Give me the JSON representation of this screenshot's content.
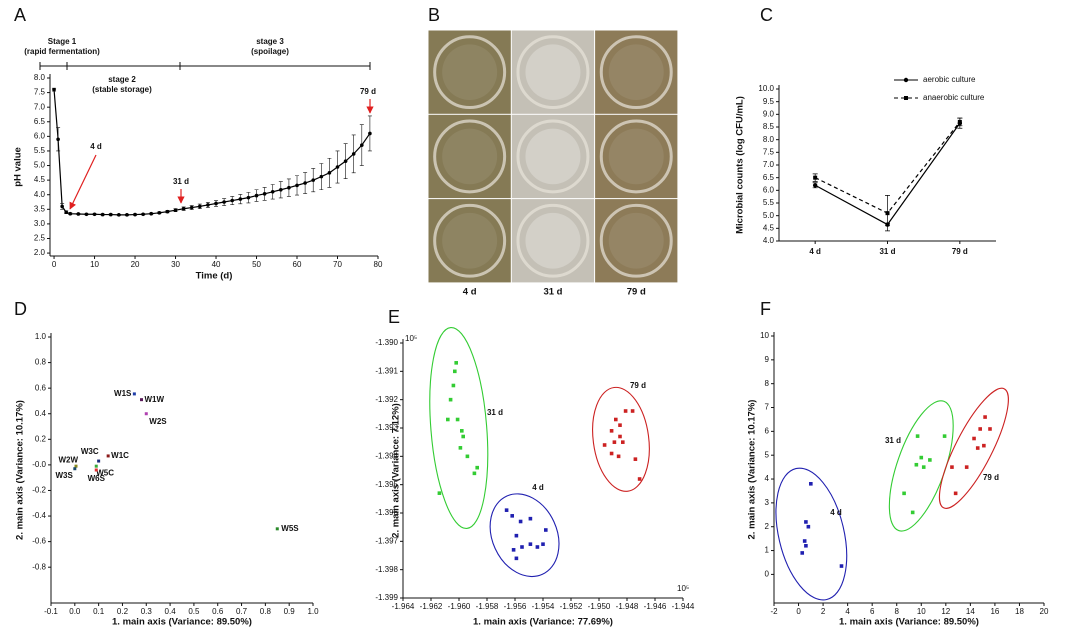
{
  "chart_data": [
    {
      "type": "line",
      "label": "A",
      "xlabel": "Time (d)",
      "ylabel": "pH value",
      "color": "#000000",
      "stages": [
        [
          "Stage 1",
          "(rapid fermentation)"
        ],
        [
          "stage 2",
          "(stable storage)"
        ],
        [
          "stage 3",
          "(spoilage)"
        ]
      ],
      "annotations": [
        "4 d",
        "31 d",
        "79 d"
      ],
      "annotation_color": "#e02020",
      "x": [
        0,
        1,
        2,
        3,
        4,
        6,
        8,
        10,
        12,
        14,
        16,
        18,
        20,
        22,
        24,
        26,
        28,
        30,
        32,
        34,
        36,
        38,
        40,
        42,
        44,
        46,
        48,
        50,
        52,
        54,
        56,
        58,
        60,
        62,
        64,
        66,
        68,
        70,
        72,
        74,
        76,
        78
      ],
      "values": [
        7.6,
        5.9,
        3.6,
        3.4,
        3.35,
        3.34,
        3.33,
        3.33,
        3.32,
        3.32,
        3.31,
        3.31,
        3.32,
        3.33,
        3.35,
        3.38,
        3.42,
        3.47,
        3.52,
        3.56,
        3.6,
        3.65,
        3.7,
        3.75,
        3.8,
        3.85,
        3.9,
        3.97,
        4.03,
        4.1,
        4.17,
        4.24,
        4.32,
        4.4,
        4.5,
        4.62,
        4.75,
        4.95,
        5.15,
        5.4,
        5.7,
        6.1
      ],
      "errors": [
        0.05,
        0.4,
        0.1,
        0.05,
        0.03,
        0.02,
        0.02,
        0.02,
        0.02,
        0.02,
        0.02,
        0.02,
        0.02,
        0.02,
        0.02,
        0.03,
        0.04,
        0.05,
        0.06,
        0.07,
        0.08,
        0.09,
        0.1,
        0.12,
        0.14,
        0.16,
        0.18,
        0.2,
        0.22,
        0.25,
        0.28,
        0.3,
        0.33,
        0.36,
        0.4,
        0.45,
        0.5,
        0.55,
        0.6,
        0.65,
        0.7,
        0.6
      ],
      "xlim": [
        -1,
        80
      ],
      "xticks": [
        0,
        10,
        20,
        30,
        40,
        50,
        60,
        70,
        80
      ],
      "ylim": [
        1.9,
        8.0
      ],
      "yticks": [
        {
          "value": 2,
          "label": "2.0"
        },
        2.5,
        {
          "value": 3,
          "label": "3.0"
        },
        3.5,
        {
          "value": 4,
          "label": "4.0"
        },
        4.5,
        {
          "value": 5,
          "label": "5.0"
        },
        5.5,
        {
          "value": 6,
          "label": "6.0"
        },
        6.5,
        {
          "value": 7,
          "label": "7.0"
        },
        7.5,
        {
          "value": 8,
          "label": "8.0"
        }
      ]
    },
    {
      "type": "image_grid",
      "label": "B",
      "columns": [
        "4 d",
        "31 d",
        "79 d"
      ],
      "colors": [
        "#857a55",
        "#c4c0b6",
        "#8d7b58"
      ]
    },
    {
      "type": "line",
      "label": "C",
      "ylabel": "Microbial counts (log CFU/mL)",
      "categories": [
        "4 d",
        "31 d",
        "79 d"
      ],
      "series": [
        {
          "name": "aerobic culture",
          "color": "#000000",
          "marker": "circle",
          "line_style": "solid",
          "values": [
            6.2,
            4.65,
            8.65
          ],
          "errors": [
            0.1,
            0.05,
            0.2
          ]
        },
        {
          "name": "anaerobic culture",
          "color": "#000000",
          "marker": "square",
          "line_style": "dashed",
          "values": [
            6.5,
            5.1,
            8.7
          ],
          "errors": [
            0.15,
            0.7,
            0.15
          ]
        }
      ],
      "legend": "upper right",
      "ylim": [
        4,
        10
      ],
      "yticks": [
        {
          "value": 4,
          "label": "4.0"
        },
        4.5,
        {
          "value": 5,
          "label": "5.0"
        },
        5.5,
        {
          "value": 6,
          "label": "6.0"
        },
        6.5,
        {
          "value": 7,
          "label": "7.0"
        },
        7.5,
        {
          "value": 8,
          "label": "8.0"
        },
        8.5,
        {
          "value": 9,
          "label": "9.0"
        },
        9.5,
        {
          "value": 10,
          "label": "10.0"
        }
      ]
    },
    {
      "type": "labeled_scatter",
      "label": "D",
      "xlabel": "1. main axis (Variance: 89.50%)",
      "ylabel": "2. main axis (Variance: 10.17%)",
      "labels": [
        "W1S",
        "W1W",
        "W2S",
        "W3C",
        "W1C",
        "W2W",
        "W5C",
        "W3S",
        "W6S",
        "W5S"
      ],
      "x": [
        0.25,
        0.28,
        0.3,
        0.1,
        0.14,
        0.005,
        0.09,
        0.0,
        0.09,
        0.85
      ],
      "y": [
        0.555,
        0.51,
        0.4,
        0.03,
        0.07,
        -0.01,
        -0.01,
        -0.03,
        -0.04,
        -0.5
      ],
      "colors": [
        "#1f3ea8",
        "#5a1a5a",
        "#b040b0",
        "#1a2a7a",
        "#8b1a1a",
        "#8a8a20",
        "#3aaa3a",
        "#1a4a6a",
        "#e03030",
        "#2a8a2a"
      ],
      "xlim": [
        -0.1,
        1.0
      ],
      "xticks": [
        -0.1,
        {
          "value": 0,
          "label": "0.0"
        },
        0.1,
        0.2,
        0.3,
        0.4,
        0.5,
        0.6,
        0.7,
        0.8,
        0.9,
        {
          "value": 1,
          "label": "1.0"
        }
      ],
      "ylim": [
        -1.08,
        1.0
      ],
      "yticks": [
        {
          "value": 1,
          "label": "1.0"
        },
        0.8,
        0.6,
        0.4,
        0.2,
        {
          "value": 0,
          "label": "-0.0"
        },
        -0.2,
        -0.4,
        -0.6,
        -0.8
      ]
    },
    {
      "type": "cluster_scatter",
      "label": "E",
      "xlabel": "1. main axis (Variance: 77.69%)",
      "ylabel": "2. main axis (Variance: 7.12%)",
      "x_multiplier": "10⁵",
      "y_multiplier": "10⁵",
      "series": [
        {
          "name": "31 d",
          "color": "#33cc33",
          "x": [
            -1.9602,
            -1.9603,
            -1.9604,
            -1.9606,
            -1.9608,
            -1.9601,
            -1.9598,
            -1.9597,
            -1.9599,
            -1.9594,
            -1.9587,
            -1.9589,
            -1.9614
          ],
          "y": [
            -1.3907,
            -1.391,
            -1.3915,
            -1.392,
            -1.3927,
            -1.3927,
            -1.3931,
            -1.3933,
            -1.3937,
            -1.394,
            -1.3944,
            -1.3946,
            -1.3953
          ]
        },
        {
          "name": "4 d",
          "color": "#2020b0",
          "x": [
            -1.9566,
            -1.9562,
            -1.9556,
            -1.9549,
            -1.9559,
            -1.9555,
            -1.9561,
            -1.9559,
            -1.9549,
            -1.9544,
            -1.954,
            -1.9538
          ],
          "y": [
            -1.3959,
            -1.3961,
            -1.3963,
            -1.3962,
            -1.3968,
            -1.3972,
            -1.3973,
            -1.3976,
            -1.3971,
            -1.3972,
            -1.3971,
            -1.3966
          ]
        },
        {
          "name": "79 d",
          "color": "#cc2222",
          "x": [
            -1.9481,
            -1.9476,
            -1.9488,
            -1.9485,
            -1.9491,
            -1.9485,
            -1.9489,
            -1.9483,
            -1.9496,
            -1.9491,
            -1.9486,
            -1.9474,
            -1.9471
          ],
          "y": [
            -1.3924,
            -1.3924,
            -1.3927,
            -1.3929,
            -1.3931,
            -1.3933,
            -1.3935,
            -1.3935,
            -1.3936,
            -1.3939,
            -1.394,
            -1.3941,
            -1.3948
          ]
        }
      ],
      "xlim": [
        -1.964,
        -1.944
      ],
      "xticks": [
        -1.964,
        -1.962,
        {
          "value": -1.96,
          "label": "-1.960"
        },
        -1.958,
        -1.956,
        -1.954,
        -1.952,
        {
          "value": -1.95,
          "label": "-1.950"
        },
        -1.948,
        -1.946,
        -1.944
      ],
      "ylim": [
        -1.399,
        -1.39
      ],
      "yticks": [
        {
          "value": -1.39,
          "label": "-1.390"
        },
        -1.391,
        -1.392,
        -1.393,
        -1.394,
        -1.395,
        -1.396,
        -1.397,
        -1.398,
        -1.399
      ]
    },
    {
      "type": "cluster_scatter",
      "label": "F",
      "xlabel": "1. main axis (Variance: 89.50%)",
      "ylabel": "2. main axis (Variance: 10.17%)",
      "series": [
        {
          "name": "31 d",
          "color": "#33cc33",
          "x": [
            9.6,
            8.6,
            9.3,
            9.7,
            10.7,
            10.0,
            10.2,
            11.9
          ],
          "y": [
            4.6,
            3.4,
            2.6,
            5.8,
            4.8,
            4.9,
            4.5,
            5.8
          ]
        },
        {
          "name": "4 d",
          "color": "#2020b0",
          "x": [
            1.0,
            0.6,
            0.8,
            0.5,
            0.6,
            3.5,
            0.3
          ],
          "y": [
            3.8,
            2.2,
            2.0,
            1.4,
            1.2,
            0.35,
            0.9
          ]
        },
        {
          "name": "79 d",
          "color": "#cc2222",
          "x": [
            15.2,
            14.8,
            14.3,
            14.6,
            15.1,
            12.5,
            13.7,
            12.8,
            15.6
          ],
          "y": [
            6.6,
            6.1,
            5.7,
            5.3,
            5.4,
            4.5,
            4.5,
            3.4,
            6.1
          ]
        }
      ],
      "xlim": [
        -2,
        20
      ],
      "xticks": [
        -2,
        0,
        2,
        4,
        6,
        8,
        10,
        12,
        14,
        16,
        18,
        20
      ],
      "ylim": [
        -1.2,
        10
      ],
      "yticks": [
        0,
        1,
        2,
        3,
        4,
        5,
        6,
        7,
        8,
        9,
        10
      ]
    }
  ]
}
